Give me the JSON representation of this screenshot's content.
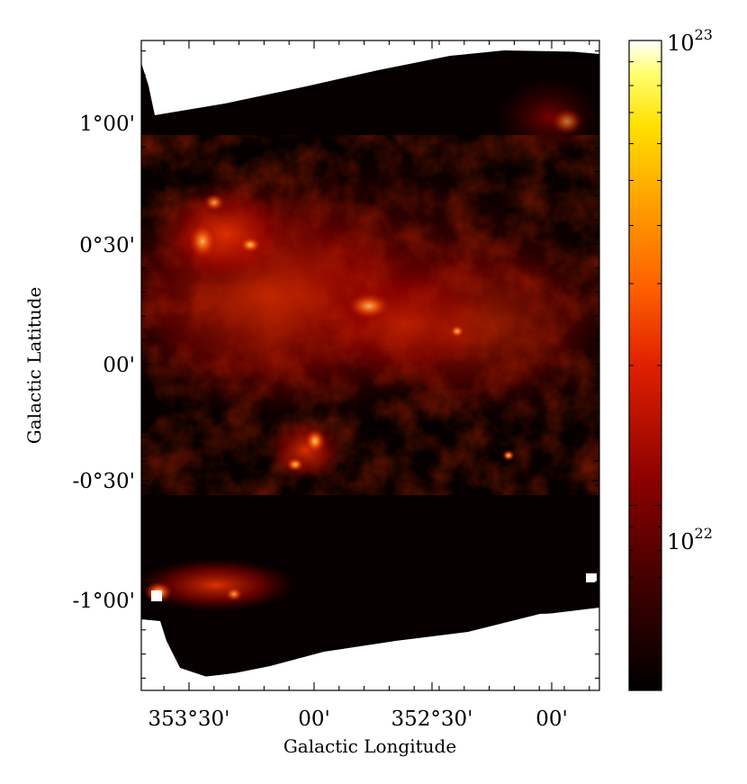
{
  "chart_data": {
    "type": "heatmap",
    "title": "",
    "xlabel": "Galactic Longitude",
    "ylabel": "Galactic Latitude",
    "x_ticks": [
      {
        "value_deg": 353.5,
        "label": "353°30'"
      },
      {
        "value_deg": 353.0,
        "label": "00'"
      },
      {
        "value_deg": 352.5,
        "label": "352°30'"
      },
      {
        "value_deg": 352.0,
        "label": "00'"
      }
    ],
    "y_ticks": [
      {
        "value_deg": 1.0,
        "label": "1°00'"
      },
      {
        "value_deg": 0.5,
        "label": "0°30'"
      },
      {
        "value_deg": 0.0,
        "label": "00'"
      },
      {
        "value_deg": -0.5,
        "label": "-0°30'"
      },
      {
        "value_deg": -1.0,
        "label": "-1°00'"
      }
    ],
    "xlim_deg": [
      353.72,
      351.9
    ],
    "ylim_deg": [
      -1.35,
      1.3
    ],
    "colorbar": {
      "scale": "log",
      "colormap": "gist_heat",
      "range": [
        4e+21,
        1e+23
      ],
      "ticks": [
        {
          "value": 1e+23,
          "base": "10",
          "exponent": "23"
        },
        {
          "value": 1e+22,
          "base": "10",
          "exponent": "22"
        }
      ]
    },
    "grid": false,
    "legend": "none"
  }
}
